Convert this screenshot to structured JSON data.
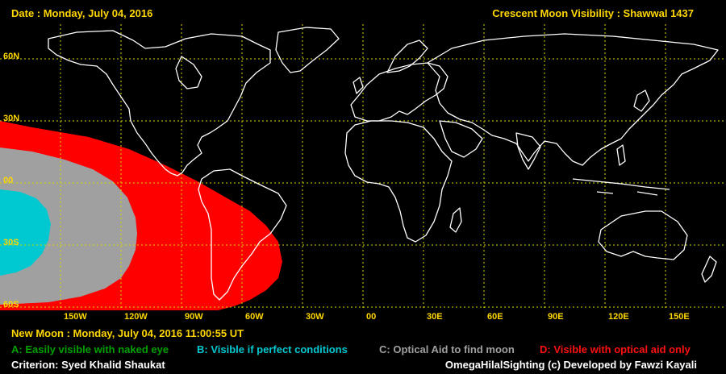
{
  "header": {
    "date": "Date : Monday, July 04, 2016",
    "title": "Crescent Moon Visibility : Shawwal  1437"
  },
  "map": {
    "lat_labels": [
      "60N",
      "30N",
      "00",
      "30S",
      "60S"
    ],
    "lon_labels": [
      "150W",
      "120W",
      "90W",
      "60W",
      "30W",
      "00",
      "30E",
      "60E",
      "90E",
      "120E",
      "150E"
    ],
    "zone_colors": {
      "A": "#00a000",
      "B": "#00c8d0",
      "C": "#a0a0a0",
      "D": "#ff0000"
    }
  },
  "footer": {
    "new_moon": "New Moon : Monday, July 04, 2016  11:00:55  UT",
    "legend": {
      "A": "A: Easily visible with naked eye",
      "B": "B: Visible if perfect conditions",
      "C": "C: Optical Aid to find moon",
      "D": "D: Visible with optical aid only"
    },
    "criterion": "Criterion: Syed Khalid Shaukat",
    "credit": "OmegaHilalSighting  (c)  Developed by Fawzi Kayali"
  }
}
